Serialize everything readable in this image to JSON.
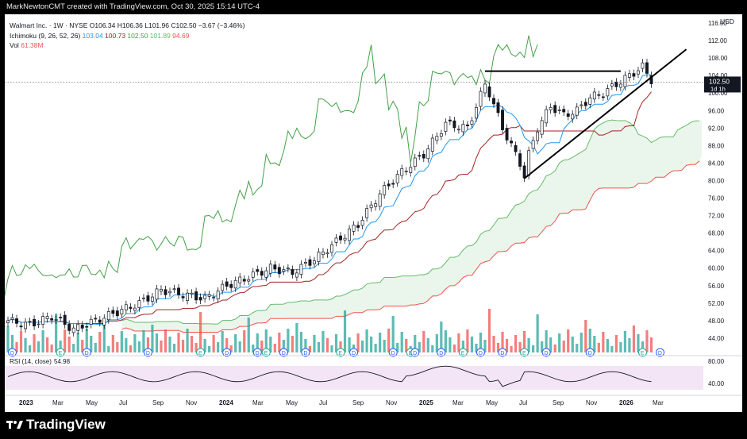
{
  "header": {
    "caption": "MarkNewtonCMT created with TradingView.com, Oct 30, 2025 15:14 UTC-4"
  },
  "legend": {
    "symbol": "Walmart Inc. · 1W · NYSE",
    "ohlc": "O106.34 H106.36 L101.96 C102.50 −3.67 (−3.46%)",
    "ichimoku_label": "Ichimoku (9, 26, 52, 26)",
    "ichimoku_values": [
      "103.04",
      "100.73",
      "102.50",
      "101.89",
      "94.69"
    ],
    "vol_label": "Vol",
    "vol_value": "61.38M",
    "rsi_label": "RSI (14, close)",
    "rsi_value": "54.98"
  },
  "axis": {
    "currency": "USD",
    "last_price": "102.50",
    "last_tag": "1d 1h"
  },
  "brand": {
    "name": "TradingView"
  },
  "colors": {
    "up": "#26a69a",
    "down": "#ef5350",
    "tenkan": "#2196f3",
    "kijun": "#a32222",
    "chikou": "#43a047",
    "spanA": "#66bb6a",
    "spanB": "#ef5350",
    "cloud": "#e8f5e9",
    "rsi": "#131722",
    "rsiband": "#f3e5f5"
  },
  "chart_data": {
    "type": "candlestick",
    "title": "Walmart Inc. · 1W · NYSE",
    "ylabel": "USD",
    "ylim": [
      40,
      118
    ],
    "y_ticks": [
      "116.00",
      "112.00",
      "108.00",
      "104.00",
      "100.00",
      "96.00",
      "92.00",
      "88.00",
      "84.00",
      "80.00",
      "76.00",
      "72.00",
      "68.00",
      "64.00",
      "60.00",
      "56.00",
      "52.00",
      "48.00",
      "44.00"
    ],
    "x_ticks": [
      "2023",
      "Mar",
      "May",
      "Jul",
      "Sep",
      "Nov",
      "2024",
      "Mar",
      "May",
      "Jul",
      "Sep",
      "Nov",
      "2025",
      "Mar",
      "May",
      "Jul",
      "Sep",
      "Nov",
      "2026",
      "Mar"
    ],
    "rsi_ticks": [
      "80.00",
      "40.00"
    ],
    "anchors": [
      [
        0,
        48
      ],
      [
        5,
        47
      ],
      [
        10,
        49
      ],
      [
        15,
        46
      ],
      [
        20,
        48
      ],
      [
        25,
        50
      ],
      [
        30,
        52
      ],
      [
        35,
        55
      ],
      [
        40,
        54
      ],
      [
        45,
        53
      ],
      [
        50,
        56
      ],
      [
        55,
        58
      ],
      [
        60,
        60
      ],
      [
        65,
        59
      ],
      [
        70,
        62
      ],
      [
        75,
        66
      ],
      [
        80,
        70
      ],
      [
        85,
        77
      ],
      [
        90,
        82
      ],
      [
        95,
        86
      ],
      [
        100,
        93
      ],
      [
        105,
        92
      ],
      [
        109,
        102
      ],
      [
        110,
        100
      ],
      [
        113,
        92
      ],
      [
        115,
        88
      ],
      [
        117,
        84
      ],
      [
        118,
        81
      ],
      [
        119,
        86
      ],
      [
        121,
        92
      ],
      [
        124,
        97
      ],
      [
        127,
        95
      ],
      [
        130,
        96
      ],
      [
        133,
        99
      ],
      [
        136,
        100
      ],
      [
        139,
        102
      ],
      [
        142,
        104
      ],
      [
        145,
        106
      ],
      [
        147,
        103
      ]
    ],
    "annotations": [
      "Resistance near 105",
      "Rising support trendline",
      "D",
      "E"
    ]
  }
}
